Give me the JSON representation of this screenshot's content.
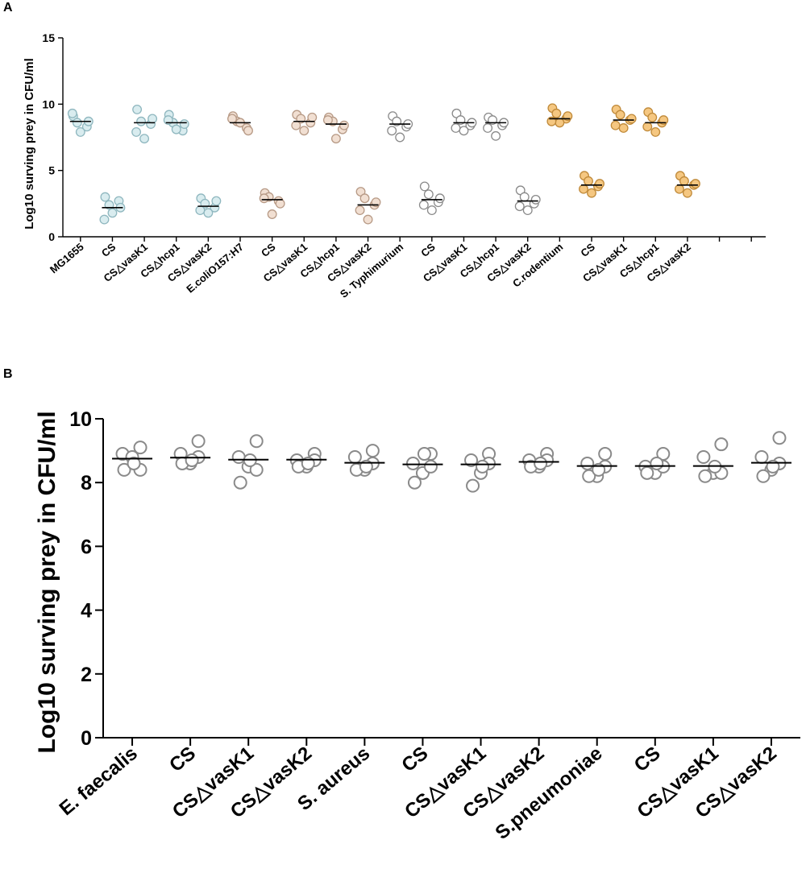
{
  "figure": {
    "panel_a_label": "A",
    "panel_b_label": "B",
    "colors": {
      "blue_fill": "#d9ecef",
      "blue_stroke": "#8fb7bf",
      "beige_fill": "#f1dfd2",
      "beige_stroke": "#b79a86",
      "white_fill": "#ffffff",
      "white_stroke": "#8a8a8a",
      "orange_fill": "#f5c781",
      "orange_stroke": "#c08a3a"
    }
  },
  "chart_data": [
    {
      "type": "scatter",
      "panel": "A",
      "title": "",
      "xlabel": "",
      "ylabel": "Log10 surving prey in CFU/ml",
      "ylim": [
        0,
        15
      ],
      "yticks": [
        "0",
        "5",
        "10",
        "15"
      ],
      "categories": [
        "MG1655",
        "CS",
        "CS△vasK1",
        "CS△hcp1",
        "CS△vasK2",
        "E.coliO157:H7",
        "CS",
        "CS△vasK1",
        "CS△hcp1",
        "CS△vasK2",
        "S. Typhimurium",
        "CS",
        "CS△vasK1",
        "CS△hcp1",
        "CS△vasK2",
        "C.rodentium",
        "CS",
        "CS△vasK1",
        "CS△hcp1",
        "CS△vasK2"
      ],
      "colors": [
        "blue",
        "blue",
        "blue",
        "blue",
        "blue",
        "beige",
        "beige",
        "beige",
        "beige",
        "beige",
        "white",
        "white",
        "white",
        "white",
        "white",
        "orange",
        "orange",
        "orange",
        "orange",
        "orange"
      ],
      "total_slots": 22,
      "series": [
        {
          "name": "MG1655",
          "values": [
            9.1,
            8.6,
            8.3,
            7.9,
            9.3,
            8.7
          ],
          "mean": 8.7
        },
        {
          "name": "CS",
          "values": [
            3.0,
            2.4,
            2.7,
            1.8,
            1.3,
            2.2
          ],
          "mean": 2.2
        },
        {
          "name": "CS△vasK1",
          "values": [
            9.6,
            8.7,
            8.5,
            7.4,
            7.9,
            8.9
          ],
          "mean": 8.6
        },
        {
          "name": "CS△hcp1",
          "values": [
            9.2,
            8.6,
            8.0,
            8.1,
            8.8,
            8.5
          ],
          "mean": 8.6
        },
        {
          "name": "CS△vasK2",
          "values": [
            2.9,
            2.5,
            2.2,
            1.8,
            2.0,
            2.7
          ],
          "mean": 2.3
        },
        {
          "name": "E.coliO157:H7",
          "values": [
            9.1,
            8.7,
            8.2,
            8.6,
            8.9,
            8.0
          ],
          "mean": 8.6
        },
        {
          "name": "CS",
          "values": [
            3.3,
            3.0,
            2.7,
            1.7,
            2.9,
            2.5
          ],
          "mean": 2.8
        },
        {
          "name": "CS△vasK1",
          "values": [
            9.2,
            8.9,
            8.6,
            8.0,
            8.4,
            9.0
          ],
          "mean": 8.7
        },
        {
          "name": "CS△hcp1",
          "values": [
            9.0,
            8.7,
            8.1,
            7.4,
            8.8,
            8.4
          ],
          "mean": 8.5
        },
        {
          "name": "CS△vasK2",
          "values": [
            3.4,
            2.9,
            2.4,
            1.3,
            2.0,
            2.6
          ],
          "mean": 2.4
        },
        {
          "name": "S. Typhimurium",
          "values": [
            9.1,
            8.7,
            8.3,
            7.5,
            8.0,
            8.5
          ],
          "mean": 8.5
        },
        {
          "name": "CS",
          "values": [
            3.8,
            3.2,
            2.6,
            2.0,
            2.4,
            2.9
          ],
          "mean": 2.8
        },
        {
          "name": "CS△vasK1",
          "values": [
            9.3,
            8.8,
            8.4,
            8.0,
            8.2,
            8.6
          ],
          "mean": 8.6
        },
        {
          "name": "CS△hcp1",
          "values": [
            9.0,
            8.8,
            8.4,
            7.6,
            8.2,
            8.6
          ],
          "mean": 8.6
        },
        {
          "name": "CS△vasK2",
          "values": [
            3.5,
            3.0,
            2.5,
            2.0,
            2.3,
            2.8
          ],
          "mean": 2.7
        },
        {
          "name": "C.rodentium",
          "values": [
            9.7,
            9.3,
            8.9,
            8.6,
            8.7,
            9.1
          ],
          "mean": 8.9
        },
        {
          "name": "CS",
          "values": [
            4.6,
            4.2,
            3.8,
            3.3,
            3.6,
            4.0
          ],
          "mean": 3.9
        },
        {
          "name": "CS△vasK1",
          "values": [
            9.6,
            9.2,
            8.8,
            8.2,
            8.4,
            8.9
          ],
          "mean": 8.8
        },
        {
          "name": "CS△hcp1",
          "values": [
            9.4,
            9.0,
            8.6,
            7.9,
            8.3,
            8.8
          ],
          "mean": 8.6
        },
        {
          "name": "CS△vasK2",
          "values": [
            4.6,
            4.2,
            3.9,
            3.3,
            3.6,
            4.0
          ],
          "mean": 3.9
        }
      ]
    },
    {
      "type": "scatter",
      "panel": "B",
      "title": "",
      "xlabel": "",
      "ylabel": "Log10 surving prey in CFU/ml",
      "ylim": [
        0,
        10
      ],
      "yticks": [
        "0",
        "2",
        "4",
        "6",
        "8",
        "10"
      ],
      "categories": [
        "E. faecalis",
        "CS",
        "CS△vasK1",
        "CS△vasK2",
        "S. aureus",
        "CS",
        "CS△vasK1",
        "CS△vasK2",
        "S.pneumoniae",
        "CS",
        "CS△vasK1",
        "CS△vasK2"
      ],
      "series": [
        {
          "name": "E. faecalis",
          "values": [
            9.1,
            8.9,
            8.8,
            8.4,
            8.4,
            8.6
          ],
          "mean": 8.75
        },
        {
          "name": "CS",
          "values": [
            9.3,
            8.9,
            8.6,
            8.6,
            8.8,
            8.7
          ],
          "mean": 8.78
        },
        {
          "name": "CS△vasK1",
          "values": [
            9.3,
            8.8,
            8.5,
            8.0,
            8.4,
            8.7
          ],
          "mean": 8.72
        },
        {
          "name": "CS△vasK2",
          "values": [
            8.9,
            8.7,
            8.5,
            8.5,
            8.7,
            8.6
          ],
          "mean": 8.72
        },
        {
          "name": "S. aureus",
          "values": [
            9.0,
            8.8,
            8.4,
            8.4,
            8.6,
            8.5
          ],
          "mean": 8.62
        },
        {
          "name": "CS",
          "values": [
            8.9,
            8.6,
            8.3,
            8.0,
            8.5,
            8.9
          ],
          "mean": 8.57
        },
        {
          "name": "CS△vasK1",
          "values": [
            8.9,
            8.7,
            8.3,
            7.9,
            8.6,
            8.5
          ],
          "mean": 8.57
        },
        {
          "name": "CS△vasK2",
          "values": [
            8.9,
            8.7,
            8.5,
            8.5,
            8.7,
            8.6
          ],
          "mean": 8.65
        },
        {
          "name": "S.pneumoniae",
          "values": [
            8.9,
            8.6,
            8.2,
            8.2,
            8.5,
            8.4
          ],
          "mean": 8.52
        },
        {
          "name": "CS",
          "values": [
            8.9,
            8.5,
            8.3,
            8.3,
            8.5,
            8.6
          ],
          "mean": 8.52
        },
        {
          "name": "CS△vasK1",
          "values": [
            9.2,
            8.8,
            8.3,
            8.2,
            8.3,
            8.5
          ],
          "mean": 8.52
        },
        {
          "name": "CS△vasK2",
          "values": [
            9.4,
            8.8,
            8.4,
            8.2,
            8.6,
            8.5
          ],
          "mean": 8.62
        }
      ]
    }
  ]
}
